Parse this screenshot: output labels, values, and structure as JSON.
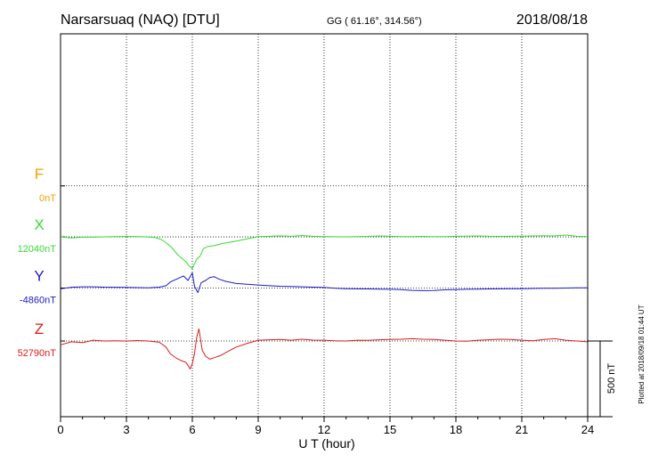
{
  "header": {
    "station": "Narsarsuaq (NAQ)  [DTU]",
    "coords": "GG ( 61.16°, 314.56°)",
    "date": "2018/08/18"
  },
  "plotted_note": "Plotted at 2018/09/18 01:44 UT",
  "scale_label": "500 nT",
  "colors": {
    "F": "#f0a000",
    "X": "#33dd33",
    "Y": "#1a1acc",
    "Z": "#dd1a1a"
  },
  "chart_data": {
    "type": "line",
    "title": "Narsarsuaq (NAQ)  [DTU]",
    "xlabel": "U T (hour)",
    "xlim": [
      0,
      24
    ],
    "x_ticks": [
      "0",
      "3",
      "6",
      "9",
      "12",
      "15",
      "18",
      "21",
      "24"
    ],
    "grid": true,
    "ylim_nT_from_Z_baseline": [
      -300,
      1370
    ],
    "scale_bar_nT": 500,
    "channels": [
      {
        "key": "F",
        "label": "F",
        "baseline_label": "0nT",
        "color": "#f0a000",
        "baseline_nT": 1025,
        "x": [],
        "y": []
      },
      {
        "key": "X",
        "label": "X",
        "baseline_label": "12040nT",
        "color": "#33dd33",
        "baseline_nT": 688,
        "x": [
          0,
          0.5,
          1,
          1.5,
          2,
          2.5,
          3,
          3.5,
          4,
          4.3,
          4.6,
          4.9,
          5.1,
          5.3,
          5.5,
          5.7,
          5.8,
          5.9,
          6.0,
          6.1,
          6.2,
          6.35,
          6.5,
          6.7,
          7.0,
          7.3,
          7.6,
          8.0,
          8.5,
          9.0,
          9.5,
          10,
          10.5,
          11,
          11.5,
          12,
          12.5,
          13,
          13.5,
          14,
          14.5,
          15,
          15.5,
          16,
          16.5,
          17,
          17.5,
          18,
          18.5,
          19,
          19.5,
          20,
          20.5,
          21,
          21.5,
          22,
          22.5,
          23,
          23.5,
          24
        ],
        "y": [
          688,
          681,
          686,
          686,
          688,
          690,
          691,
          690,
          687,
          684,
          670,
          638,
          612,
          576,
          548,
          525,
          505,
          490,
          478,
          510,
          540,
          560,
          610,
          625,
          630,
          642,
          650,
          660,
          675,
          690,
          692,
          695,
          692,
          697,
          692,
          690,
          689,
          688,
          690,
          691,
          694,
          692,
          690,
          690,
          691,
          689,
          690,
          692,
          693,
          694,
          692,
          691,
          692,
          693,
          694,
          696,
          694,
          700,
          692,
          690
        ]
      },
      {
        "key": "Y",
        "label": "Y",
        "baseline_label": "-4860nT",
        "color": "#1a1acc",
        "baseline_nT": 350,
        "x": [
          0,
          0.5,
          1,
          1.5,
          2,
          2.5,
          3,
          3.5,
          4,
          4.5,
          4.8,
          5.0,
          5.3,
          5.6,
          5.8,
          6.0,
          6.1,
          6.25,
          6.4,
          6.6,
          6.8,
          7.0,
          7.2,
          7.5,
          8.0,
          8.5,
          9.0,
          9.5,
          10,
          10.5,
          11,
          11.5,
          12,
          12.5,
          13,
          13.5,
          14,
          14.5,
          15,
          15.5,
          16,
          16.5,
          17,
          17.5,
          18,
          18.5,
          19,
          19.5,
          20,
          20.5,
          21,
          21.5,
          22,
          22.5,
          23,
          23.5,
          24
        ],
        "y": [
          345,
          355,
          358,
          358,
          356,
          355,
          354,
          353,
          352,
          356,
          365,
          390,
          410,
          430,
          400,
          450,
          360,
          320,
          385,
          400,
          420,
          425,
          410,
          395,
          380,
          375,
          370,
          365,
          362,
          360,
          358,
          356,
          354,
          348,
          346,
          345,
          344,
          343,
          342,
          340,
          335,
          333,
          334,
          338,
          340,
          342,
          343,
          344,
          345,
          346,
          346,
          347,
          348,
          349,
          350,
          351,
          352
        ]
      },
      {
        "key": "Z",
        "label": "Z",
        "baseline_label": "52790nT",
        "color": "#dd1a1a",
        "baseline_nT": 0,
        "x": [
          0,
          0.5,
          1,
          1.5,
          2,
          2.5,
          3,
          3.5,
          4,
          4.5,
          4.8,
          5.0,
          5.3,
          5.5,
          5.7,
          5.8,
          5.9,
          6.0,
          6.1,
          6.2,
          6.3,
          6.45,
          6.6,
          6.8,
          7.0,
          7.3,
          7.6,
          8.0,
          8.5,
          9.0,
          9.5,
          10,
          10.5,
          11,
          11.5,
          12,
          12.5,
          13,
          13.5,
          14,
          14.5,
          15,
          15.5,
          16,
          16.5,
          17,
          17.5,
          18,
          18.5,
          19,
          19.5,
          20,
          20.5,
          21,
          21.5,
          22,
          22.5,
          23,
          23.5,
          24
        ],
        "y": [
          -25,
          -5,
          -10,
          5,
          0,
          2,
          0,
          3,
          0,
          -8,
          -40,
          -85,
          -115,
          -130,
          -140,
          -160,
          -185,
          -150,
          -80,
          25,
          80,
          -60,
          -100,
          -120,
          -110,
          -95,
          -70,
          -40,
          -15,
          5,
          8,
          10,
          5,
          12,
          6,
          5,
          2,
          0,
          5,
          4,
          8,
          10,
          12,
          15,
          12,
          10,
          5,
          0,
          -2,
          5,
          8,
          12,
          10,
          5,
          2,
          10,
          15,
          5,
          0,
          -5
        ]
      }
    ]
  }
}
